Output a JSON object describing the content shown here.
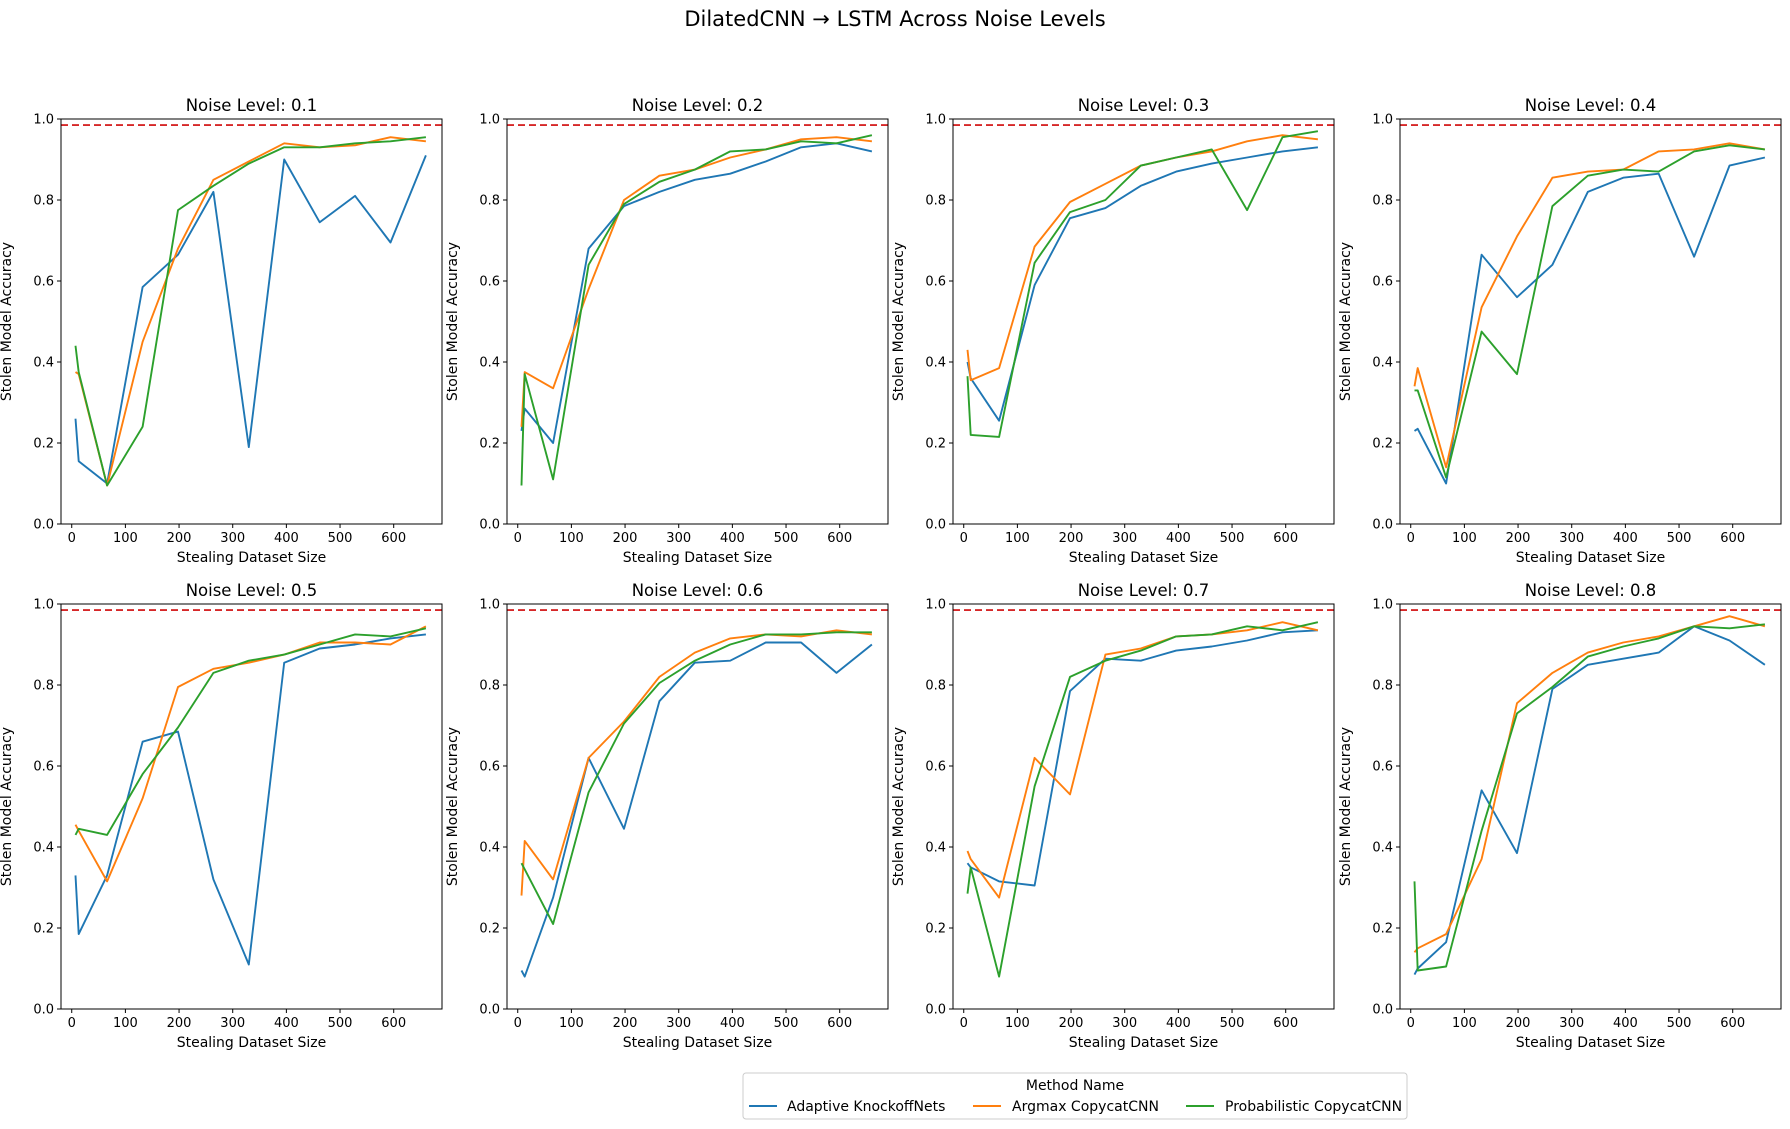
{
  "figure_title": "DilatedCNN → LSTM Across Noise Levels",
  "legend": {
    "title": "Method Name",
    "placement": "bottom-center",
    "items": [
      {
        "label": "Adaptive KnockoffNets",
        "color": "#1f77b4"
      },
      {
        "label": "Argmax CopycatCNN",
        "color": "#ff7f0e"
      },
      {
        "label": "Probabilistic CopycatCNN",
        "color": "#2ca02c"
      }
    ]
  },
  "chart_data": [
    {
      "type": "line",
      "title": "Noise Level: 0.1",
      "xlabel": "Stealing Dataset Size",
      "ylabel": "Stolen Model Accuracy",
      "xlim": [
        -20,
        690
      ],
      "ylim": [
        0,
        1.0
      ],
      "xticks": [
        0,
        100,
        200,
        300,
        400,
        500,
        600
      ],
      "yticks": [
        0.0,
        0.2,
        0.4,
        0.6,
        0.8,
        1.0
      ],
      "grid": false,
      "reference_line": {
        "y": 0.985,
        "color": "#d62728",
        "style": "dashed"
      },
      "x": [
        7,
        13,
        66,
        132,
        198,
        264,
        330,
        396,
        462,
        528,
        594,
        660
      ],
      "series": [
        {
          "name": "Adaptive KnockoffNets",
          "color": "#1f77b4",
          "values": [
            0.26,
            0.155,
            0.1,
            0.585,
            0.665,
            0.82,
            0.19,
            0.9,
            0.745,
            0.81,
            0.695,
            0.91
          ]
        },
        {
          "name": "Argmax CopycatCNN",
          "color": "#ff7f0e",
          "values": [
            0.375,
            0.37,
            0.095,
            0.45,
            0.68,
            0.85,
            0.895,
            0.94,
            0.93,
            0.935,
            0.955,
            0.945
          ]
        },
        {
          "name": "Probabilistic CopycatCNN",
          "color": "#2ca02c",
          "values": [
            0.44,
            0.375,
            0.095,
            0.24,
            0.775,
            0.835,
            0.89,
            0.93,
            0.93,
            0.94,
            0.945,
            0.955
          ]
        }
      ]
    },
    {
      "type": "line",
      "title": "Noise Level: 0.2",
      "xlabel": "Stealing Dataset Size",
      "ylabel": "Stolen Model Accuracy",
      "xlim": [
        -20,
        690
      ],
      "ylim": [
        0,
        1.0
      ],
      "xticks": [
        0,
        100,
        200,
        300,
        400,
        500,
        600
      ],
      "yticks": [
        0.0,
        0.2,
        0.4,
        0.6,
        0.8,
        1.0
      ],
      "grid": false,
      "reference_line": {
        "y": 0.985,
        "color": "#d62728",
        "style": "dashed"
      },
      "x": [
        7,
        13,
        66,
        132,
        198,
        264,
        330,
        396,
        462,
        528,
        594,
        660
      ],
      "series": [
        {
          "name": "Adaptive KnockoffNets",
          "color": "#1f77b4",
          "values": [
            0.23,
            0.285,
            0.2,
            0.68,
            0.785,
            0.82,
            0.85,
            0.865,
            0.895,
            0.93,
            0.94,
            0.92
          ]
        },
        {
          "name": "Argmax CopycatCNN",
          "color": "#ff7f0e",
          "values": [
            0.24,
            0.375,
            0.335,
            0.58,
            0.8,
            0.86,
            0.875,
            0.905,
            0.925,
            0.95,
            0.955,
            0.945
          ]
        },
        {
          "name": "Probabilistic CopycatCNN",
          "color": "#2ca02c",
          "values": [
            0.095,
            0.37,
            0.11,
            0.64,
            0.79,
            0.845,
            0.875,
            0.92,
            0.925,
            0.945,
            0.94,
            0.96
          ]
        }
      ]
    },
    {
      "type": "line",
      "title": "Noise Level: 0.3",
      "xlabel": "Stealing Dataset Size",
      "ylabel": "Stolen Model Accuracy",
      "xlim": [
        -20,
        690
      ],
      "ylim": [
        0,
        1.0
      ],
      "xticks": [
        0,
        100,
        200,
        300,
        400,
        500,
        600
      ],
      "yticks": [
        0.0,
        0.2,
        0.4,
        0.6,
        0.8,
        1.0
      ],
      "grid": false,
      "reference_line": {
        "y": 0.985,
        "color": "#d62728",
        "style": "dashed"
      },
      "x": [
        7,
        13,
        66,
        132,
        198,
        264,
        330,
        396,
        462,
        528,
        594,
        660
      ],
      "series": [
        {
          "name": "Adaptive KnockoffNets",
          "color": "#1f77b4",
          "values": [
            0.4,
            0.36,
            0.255,
            0.59,
            0.755,
            0.78,
            0.835,
            0.87,
            0.89,
            0.905,
            0.92,
            0.93
          ]
        },
        {
          "name": "Argmax CopycatCNN",
          "color": "#ff7f0e",
          "values": [
            0.43,
            0.355,
            0.385,
            0.685,
            0.795,
            0.84,
            0.885,
            0.905,
            0.92,
            0.945,
            0.96,
            0.95
          ]
        },
        {
          "name": "Probabilistic CopycatCNN",
          "color": "#2ca02c",
          "values": [
            0.365,
            0.22,
            0.215,
            0.645,
            0.77,
            0.8,
            0.885,
            0.905,
            0.925,
            0.775,
            0.955,
            0.97
          ]
        }
      ]
    },
    {
      "type": "line",
      "title": "Noise Level: 0.4",
      "xlabel": "Stealing Dataset Size",
      "ylabel": "Stolen Model Accuracy",
      "xlim": [
        -20,
        690
      ],
      "ylim": [
        0,
        1.0
      ],
      "xticks": [
        0,
        100,
        200,
        300,
        400,
        500,
        600
      ],
      "yticks": [
        0.0,
        0.2,
        0.4,
        0.6,
        0.8,
        1.0
      ],
      "grid": false,
      "reference_line": {
        "y": 0.985,
        "color": "#d62728",
        "style": "dashed"
      },
      "x": [
        7,
        13,
        66,
        132,
        198,
        264,
        330,
        396,
        462,
        528,
        594,
        660
      ],
      "series": [
        {
          "name": "Adaptive KnockoffNets",
          "color": "#1f77b4",
          "values": [
            0.23,
            0.235,
            0.1,
            0.665,
            0.56,
            0.64,
            0.82,
            0.855,
            0.865,
            0.66,
            0.885,
            0.905
          ]
        },
        {
          "name": "Argmax CopycatCNN",
          "color": "#ff7f0e",
          "values": [
            0.34,
            0.385,
            0.14,
            0.535,
            0.71,
            0.855,
            0.87,
            0.875,
            0.92,
            0.925,
            0.94,
            0.925
          ]
        },
        {
          "name": "Probabilistic CopycatCNN",
          "color": "#2ca02c",
          "values": [
            0.33,
            0.33,
            0.115,
            0.475,
            0.37,
            0.785,
            0.86,
            0.875,
            0.87,
            0.92,
            0.935,
            0.925
          ]
        }
      ]
    },
    {
      "type": "line",
      "title": "Noise Level: 0.5",
      "xlabel": "Stealing Dataset Size",
      "ylabel": "Stolen Model Accuracy",
      "xlim": [
        -20,
        690
      ],
      "ylim": [
        0,
        1.0
      ],
      "xticks": [
        0,
        100,
        200,
        300,
        400,
        500,
        600
      ],
      "yticks": [
        0.0,
        0.2,
        0.4,
        0.6,
        0.8,
        1.0
      ],
      "grid": false,
      "reference_line": {
        "y": 0.985,
        "color": "#d62728",
        "style": "dashed"
      },
      "x": [
        7,
        13,
        66,
        132,
        198,
        264,
        330,
        396,
        462,
        528,
        594,
        660
      ],
      "series": [
        {
          "name": "Adaptive KnockoffNets",
          "color": "#1f77b4",
          "values": [
            0.33,
            0.185,
            0.33,
            0.66,
            0.685,
            0.32,
            0.11,
            0.855,
            0.89,
            0.9,
            0.915,
            0.925
          ]
        },
        {
          "name": "Argmax CopycatCNN",
          "color": "#ff7f0e",
          "values": [
            0.455,
            0.44,
            0.315,
            0.52,
            0.795,
            0.84,
            0.855,
            0.875,
            0.905,
            0.905,
            0.9,
            0.945
          ]
        },
        {
          "name": "Probabilistic CopycatCNN",
          "color": "#2ca02c",
          "values": [
            0.43,
            0.445,
            0.43,
            0.58,
            0.695,
            0.83,
            0.86,
            0.875,
            0.9,
            0.925,
            0.92,
            0.94
          ]
        }
      ]
    },
    {
      "type": "line",
      "title": "Noise Level: 0.6",
      "xlabel": "Stealing Dataset Size",
      "ylabel": "Stolen Model Accuracy",
      "xlim": [
        -20,
        690
      ],
      "ylim": [
        0,
        1.0
      ],
      "xticks": [
        0,
        100,
        200,
        300,
        400,
        500,
        600
      ],
      "yticks": [
        0.0,
        0.2,
        0.4,
        0.6,
        0.8,
        1.0
      ],
      "grid": false,
      "reference_line": {
        "y": 0.985,
        "color": "#d62728",
        "style": "dashed"
      },
      "x": [
        7,
        13,
        66,
        132,
        198,
        264,
        330,
        396,
        462,
        528,
        594,
        660
      ],
      "series": [
        {
          "name": "Adaptive KnockoffNets",
          "color": "#1f77b4",
          "values": [
            0.095,
            0.08,
            0.275,
            0.62,
            0.445,
            0.76,
            0.855,
            0.86,
            0.905,
            0.905,
            0.83,
            0.9
          ]
        },
        {
          "name": "Argmax CopycatCNN",
          "color": "#ff7f0e",
          "values": [
            0.28,
            0.415,
            0.32,
            0.62,
            0.71,
            0.82,
            0.88,
            0.915,
            0.925,
            0.92,
            0.935,
            0.925
          ]
        },
        {
          "name": "Probabilistic CopycatCNN",
          "color": "#2ca02c",
          "values": [
            0.36,
            0.345,
            0.21,
            0.535,
            0.705,
            0.805,
            0.86,
            0.9,
            0.925,
            0.925,
            0.93,
            0.93
          ]
        }
      ]
    },
    {
      "type": "line",
      "title": "Noise Level: 0.7",
      "xlabel": "Stealing Dataset Size",
      "ylabel": "Stolen Model Accuracy",
      "xlim": [
        -20,
        690
      ],
      "ylim": [
        0,
        1.0
      ],
      "xticks": [
        0,
        100,
        200,
        300,
        400,
        500,
        600
      ],
      "yticks": [
        0.0,
        0.2,
        0.4,
        0.6,
        0.8,
        1.0
      ],
      "grid": false,
      "reference_line": {
        "y": 0.985,
        "color": "#d62728",
        "style": "dashed"
      },
      "x": [
        7,
        13,
        66,
        132,
        198,
        264,
        330,
        396,
        462,
        528,
        594,
        660
      ],
      "series": [
        {
          "name": "Adaptive KnockoffNets",
          "color": "#1f77b4",
          "values": [
            0.36,
            0.35,
            0.315,
            0.305,
            0.785,
            0.865,
            0.86,
            0.885,
            0.895,
            0.91,
            0.93,
            0.935
          ]
        },
        {
          "name": "Argmax CopycatCNN",
          "color": "#ff7f0e",
          "values": [
            0.39,
            0.37,
            0.275,
            0.62,
            0.53,
            0.875,
            0.89,
            0.92,
            0.925,
            0.935,
            0.955,
            0.935
          ]
        },
        {
          "name": "Probabilistic CopycatCNN",
          "color": "#2ca02c",
          "values": [
            0.285,
            0.35,
            0.08,
            0.55,
            0.82,
            0.86,
            0.885,
            0.92,
            0.925,
            0.945,
            0.935,
            0.955
          ]
        }
      ]
    },
    {
      "type": "line",
      "title": "Noise Level: 0.8",
      "xlabel": "Stealing Dataset Size",
      "ylabel": "Stolen Model Accuracy",
      "xlim": [
        -20,
        690
      ],
      "ylim": [
        0,
        1.0
      ],
      "xticks": [
        0,
        100,
        200,
        300,
        400,
        500,
        600
      ],
      "yticks": [
        0.0,
        0.2,
        0.4,
        0.6,
        0.8,
        1.0
      ],
      "grid": false,
      "reference_line": {
        "y": 0.985,
        "color": "#d62728",
        "style": "dashed"
      },
      "x": [
        7,
        13,
        66,
        132,
        198,
        264,
        330,
        396,
        462,
        528,
        594,
        660
      ],
      "series": [
        {
          "name": "Adaptive KnockoffNets",
          "color": "#1f77b4",
          "values": [
            0.085,
            0.1,
            0.165,
            0.54,
            0.385,
            0.79,
            0.85,
            0.865,
            0.88,
            0.945,
            0.91,
            0.85
          ]
        },
        {
          "name": "Argmax CopycatCNN",
          "color": "#ff7f0e",
          "values": [
            0.14,
            0.15,
            0.185,
            0.37,
            0.755,
            0.83,
            0.88,
            0.905,
            0.92,
            0.945,
            0.97,
            0.945
          ]
        },
        {
          "name": "Probabilistic CopycatCNN",
          "color": "#2ca02c",
          "values": [
            0.315,
            0.095,
            0.105,
            0.44,
            0.73,
            0.795,
            0.87,
            0.895,
            0.915,
            0.945,
            0.94,
            0.95
          ]
        }
      ]
    }
  ]
}
